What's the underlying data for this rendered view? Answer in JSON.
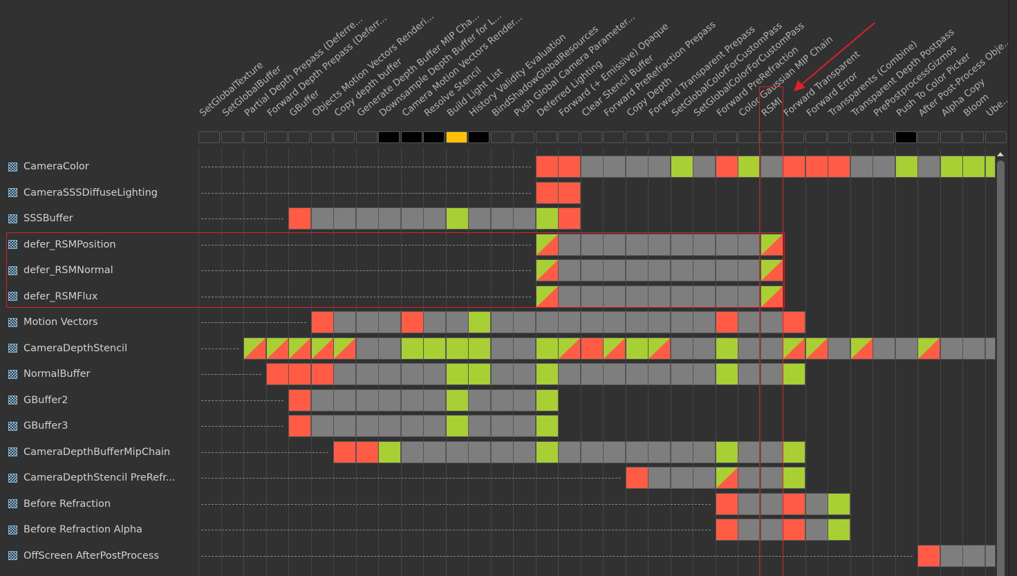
{
  "columns": [
    "SetGlobalTexture",
    "SetGlobalBuffer",
    "Partial Depth Prepass (Deferre...",
    "Forward Depth Prepass (Deferr...",
    "GBuffer",
    "Objects Motion Vectors Renderi...",
    "Copy depth buffer",
    "Generate Depth Buffer MIP Cha...",
    "Downsample Depth Buffer for L...",
    "Camera Motion Vectors Render...",
    "Resolve Stencil",
    "Build Light List",
    "History Validity Evaluation",
    "BindShadowGlobalResources",
    "Push Global Camera Parameter...",
    "Deferred Lighting",
    "Forward (+ Emissive) Opaque",
    "Clear Stencil Buffer",
    "Forward PreRefraction Prepass",
    "Copy Depth",
    "Forward Transparent Prepass",
    "SetGlobalColorForCustomPass",
    "SetGlobalColorForCustomPass",
    "Forward PreRefraction",
    "Color Gaussian MIP Chain",
    "RSMI",
    "Forward Transparent",
    "Forward Error",
    "Transparents (Combine)",
    "Transparent Depth Postpass",
    "PrePostprocessGizmos",
    "Push To Color Picker",
    "After Post-Process Obje...",
    "Alpha Copy",
    "Bloom",
    "Ube..."
  ],
  "pass_status": [
    "empty",
    "empty",
    "empty",
    "empty",
    "empty",
    "empty",
    "empty",
    "empty",
    "culled",
    "culled",
    "culled",
    "selected",
    "culled",
    "empty",
    "empty",
    "empty",
    "empty",
    "empty",
    "empty",
    "empty",
    "empty",
    "empty",
    "empty",
    "empty",
    "empty",
    "empty",
    "empty",
    "empty",
    "empty",
    "empty",
    "empty",
    "culled",
    "empty",
    "empty",
    "empty",
    "empty"
  ],
  "colors": {
    "background": "#313131",
    "read": "#a8d034",
    "write": "#ff5b45",
    "used": "#7e7e7e",
    "culled": "#000000",
    "selected": "#ffc107",
    "annotation": "#e0202a",
    "icon": "#7fb6d9"
  },
  "legend_codes": {
    "G": "used",
    "R": "write",
    "L": "read",
    "S": "read-write"
  },
  "resources": [
    {
      "name": "CameraColor",
      "icon": "texture-icon",
      "start": 15,
      "cells": "RRGGGGLGRLGRRRGGLGLLL"
    },
    {
      "name": "CameraSSSDiffuseLighting",
      "icon": "texture-icon",
      "start": 15,
      "cells": "RR"
    },
    {
      "name": "SSSBuffer",
      "icon": "texture-icon",
      "start": 4,
      "cells": "RGGGGGGLGGGLR"
    },
    {
      "name": "defer_RSMPosition",
      "icon": "texture-icon",
      "start": 15,
      "cells": "SGGGGGGGGGS"
    },
    {
      "name": "defer_RSMNormal",
      "icon": "texture-icon",
      "start": 15,
      "cells": "SGGGGGGGGGS"
    },
    {
      "name": "defer_RSMFlux",
      "icon": "texture-icon",
      "start": 15,
      "cells": "SGGGGGGGGGS"
    },
    {
      "name": "Motion Vectors",
      "icon": "texture-icon",
      "start": 5,
      "cells": "RGGGRGGLGGGGGGGGGGRGGR"
    },
    {
      "name": "CameraDepthStencil",
      "icon": "texture-icon",
      "start": 2,
      "cells": "SSSSSGGLLLLGGLSRSLSGGLGGSSGSGGSGGG"
    },
    {
      "name": "NormalBuffer",
      "icon": "texture-icon",
      "start": 3,
      "cells": "RRRGGGGGLLGGLGGGGGGGLGGL"
    },
    {
      "name": "GBuffer2",
      "icon": "texture-icon",
      "start": 4,
      "cells": "RGGGGGGLGGGL"
    },
    {
      "name": "GBuffer3",
      "icon": "texture-icon",
      "start": 4,
      "cells": "RGGGGGGLGGGL"
    },
    {
      "name": "CameraDepthBufferMipChain",
      "icon": "texture-icon",
      "start": 6,
      "cells": "RRLGGGGGGLGGGGGGGLGGL"
    },
    {
      "name": "CameraDepthStencil PreRefr...",
      "icon": "texture-icon",
      "start": 19,
      "cells": "RGGGSGGL"
    },
    {
      "name": "Before Refraction",
      "icon": "texture-icon",
      "start": 23,
      "cells": "RGGRGL"
    },
    {
      "name": "Before Refraction Alpha",
      "icon": "texture-icon",
      "start": 23,
      "cells": "RGGRGL"
    },
    {
      "name": "OffScreen AfterPostProcess",
      "icon": "texture-icon",
      "start": 32,
      "cells": "RGGG"
    }
  ],
  "scrollbar": {
    "icon": "scroll-up-arrow-icon"
  },
  "annotations": {
    "highlight_column": 25,
    "highlight_rows": [
      "defer_RSMPosition",
      "defer_RSMNormal",
      "defer_RSMFlux"
    ],
    "arrow": "arrow-icon"
  }
}
